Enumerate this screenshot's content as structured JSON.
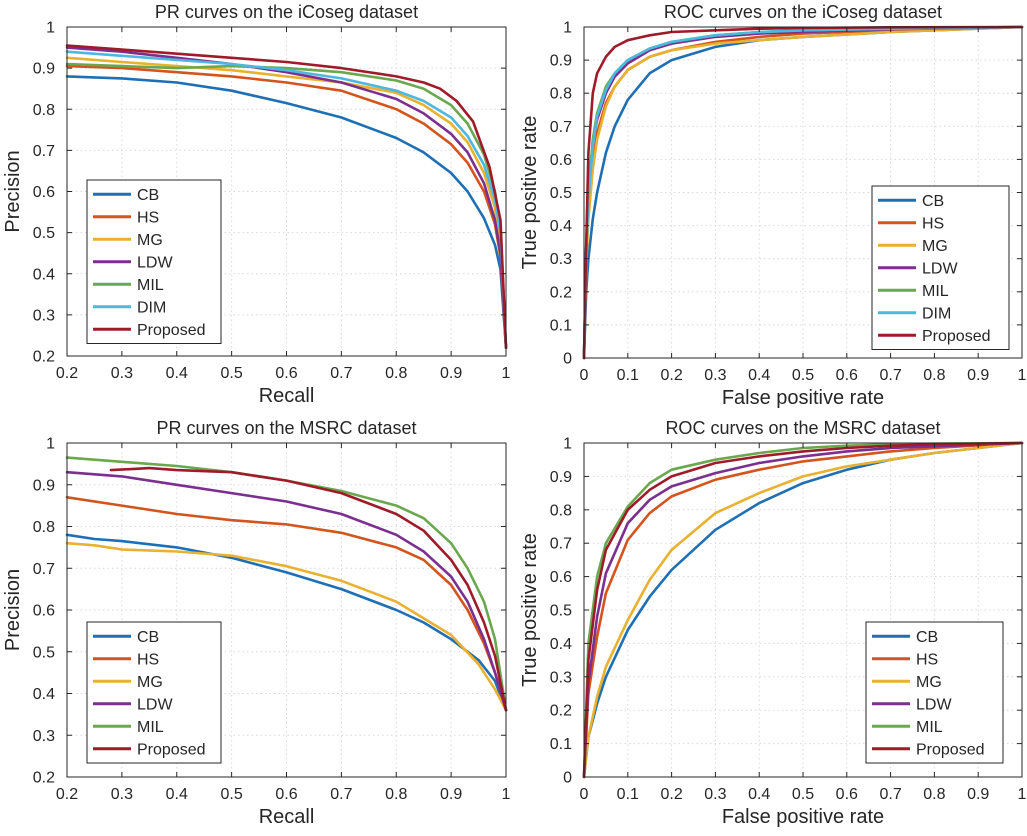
{
  "colors": {
    "CB": "#1f6fb4",
    "HS": "#d4541e",
    "MG": "#e8b12f",
    "LDW": "#7b2f8e",
    "MIL": "#6aa84f",
    "DIM": "#4db8df",
    "Proposed": "#9e1b2a"
  },
  "chart_data": [
    {
      "id": "pr-icoseg",
      "type": "line",
      "title": "PR curves on the iCoseg dataset",
      "xlabel": "Recall",
      "ylabel": "Precision",
      "xlim": [
        0.2,
        1
      ],
      "ylim": [
        0.2,
        1
      ],
      "xticks": [
        "0.2",
        "0.3",
        "0.4",
        "0.5",
        "0.6",
        "0.7",
        "0.8",
        "0.9",
        "1"
      ],
      "yticks": [
        "0.2",
        "0.3",
        "0.4",
        "0.5",
        "0.6",
        "0.7",
        "0.8",
        "0.9",
        "1"
      ],
      "grid": true,
      "legend_position": "bottom-left",
      "series": [
        {
          "name": "CB",
          "x": [
            0.2,
            0.3,
            0.4,
            0.5,
            0.6,
            0.7,
            0.8,
            0.85,
            0.9,
            0.93,
            0.96,
            0.98,
            0.99,
            1.0
          ],
          "y": [
            0.88,
            0.875,
            0.865,
            0.845,
            0.815,
            0.78,
            0.73,
            0.695,
            0.645,
            0.6,
            0.535,
            0.47,
            0.41,
            0.22
          ]
        },
        {
          "name": "HS",
          "x": [
            0.2,
            0.3,
            0.4,
            0.5,
            0.6,
            0.7,
            0.8,
            0.85,
            0.9,
            0.93,
            0.96,
            0.98,
            0.99,
            1.0
          ],
          "y": [
            0.905,
            0.9,
            0.89,
            0.88,
            0.865,
            0.845,
            0.8,
            0.765,
            0.715,
            0.67,
            0.6,
            0.52,
            0.44,
            0.22
          ]
        },
        {
          "name": "MG",
          "x": [
            0.2,
            0.3,
            0.4,
            0.5,
            0.6,
            0.7,
            0.8,
            0.85,
            0.9,
            0.93,
            0.96,
            0.98,
            0.99,
            1.0
          ],
          "y": [
            0.925,
            0.915,
            0.905,
            0.895,
            0.88,
            0.865,
            0.84,
            0.81,
            0.765,
            0.72,
            0.645,
            0.56,
            0.47,
            0.22
          ]
        },
        {
          "name": "LDW",
          "x": [
            0.2,
            0.3,
            0.4,
            0.5,
            0.6,
            0.7,
            0.8,
            0.85,
            0.9,
            0.93,
            0.96,
            0.98,
            0.99,
            1.0
          ],
          "y": [
            0.95,
            0.94,
            0.925,
            0.91,
            0.89,
            0.865,
            0.825,
            0.79,
            0.74,
            0.695,
            0.62,
            0.53,
            0.45,
            0.22
          ]
        },
        {
          "name": "MIL",
          "x": [
            0.2,
            0.3,
            0.4,
            0.5,
            0.6,
            0.7,
            0.8,
            0.85,
            0.9,
            0.93,
            0.96,
            0.98,
            0.99,
            1.0
          ],
          "y": [
            0.91,
            0.905,
            0.9,
            0.905,
            0.9,
            0.89,
            0.87,
            0.85,
            0.81,
            0.765,
            0.69,
            0.6,
            0.51,
            0.22
          ]
        },
        {
          "name": "DIM",
          "x": [
            0.2,
            0.3,
            0.4,
            0.5,
            0.6,
            0.7,
            0.8,
            0.85,
            0.9,
            0.93,
            0.96,
            0.98,
            0.99,
            1.0
          ],
          "y": [
            0.94,
            0.93,
            0.92,
            0.91,
            0.895,
            0.875,
            0.845,
            0.82,
            0.78,
            0.735,
            0.665,
            0.58,
            0.5,
            0.22
          ]
        },
        {
          "name": "Proposed",
          "x": [
            0.2,
            0.3,
            0.4,
            0.5,
            0.6,
            0.7,
            0.8,
            0.85,
            0.88,
            0.91,
            0.94,
            0.97,
            0.99,
            1.0
          ],
          "y": [
            0.955,
            0.945,
            0.935,
            0.925,
            0.915,
            0.9,
            0.88,
            0.865,
            0.85,
            0.82,
            0.77,
            0.66,
            0.53,
            0.22
          ]
        }
      ]
    },
    {
      "id": "roc-icoseg",
      "type": "line",
      "title": "ROC curves on the iCoseg dataset",
      "xlabel": "False positive rate",
      "ylabel": "True positive rate",
      "xlim": [
        0,
        1
      ],
      "ylim": [
        0,
        1
      ],
      "xticks": [
        "0",
        "0.1",
        "0.2",
        "0.3",
        "0.4",
        "0.5",
        "0.6",
        "0.7",
        "0.8",
        "0.9",
        "1"
      ],
      "yticks": [
        "0",
        "0.1",
        "0.2",
        "0.3",
        "0.4",
        "0.5",
        "0.6",
        "0.7",
        "0.8",
        "0.9",
        "1"
      ],
      "grid": true,
      "legend_position": "bottom-right",
      "series": [
        {
          "name": "CB",
          "x": [
            0,
            0.005,
            0.01,
            0.02,
            0.03,
            0.05,
            0.07,
            0.1,
            0.15,
            0.2,
            0.3,
            0.4,
            0.5,
            0.7,
            1.0
          ],
          "y": [
            0,
            0.2,
            0.3,
            0.42,
            0.5,
            0.62,
            0.7,
            0.78,
            0.86,
            0.9,
            0.94,
            0.96,
            0.97,
            0.985,
            1
          ]
        },
        {
          "name": "HS",
          "x": [
            0,
            0.005,
            0.01,
            0.02,
            0.03,
            0.05,
            0.07,
            0.1,
            0.15,
            0.2,
            0.3,
            0.4,
            0.5,
            0.7,
            1.0
          ],
          "y": [
            0,
            0.3,
            0.45,
            0.6,
            0.68,
            0.77,
            0.82,
            0.87,
            0.91,
            0.93,
            0.955,
            0.97,
            0.98,
            0.99,
            1
          ]
        },
        {
          "name": "MG",
          "x": [
            0,
            0.005,
            0.01,
            0.02,
            0.03,
            0.05,
            0.07,
            0.1,
            0.15,
            0.2,
            0.3,
            0.4,
            0.5,
            0.7,
            1.0
          ],
          "y": [
            0,
            0.28,
            0.42,
            0.57,
            0.66,
            0.76,
            0.82,
            0.87,
            0.91,
            0.93,
            0.95,
            0.96,
            0.97,
            0.985,
            1
          ]
        },
        {
          "name": "LDW",
          "x": [
            0,
            0.005,
            0.01,
            0.02,
            0.03,
            0.05,
            0.07,
            0.1,
            0.15,
            0.2,
            0.3,
            0.4,
            0.5,
            0.7,
            1.0
          ],
          "y": [
            0,
            0.33,
            0.5,
            0.65,
            0.72,
            0.8,
            0.85,
            0.89,
            0.93,
            0.95,
            0.97,
            0.98,
            0.985,
            0.993,
            1
          ]
        },
        {
          "name": "MIL",
          "x": [
            0,
            0.005,
            0.01,
            0.02,
            0.03,
            0.05,
            0.07,
            0.1,
            0.15,
            0.2,
            0.3,
            0.4,
            0.5,
            0.7,
            1.0
          ],
          "y": [
            0,
            0.33,
            0.5,
            0.66,
            0.74,
            0.82,
            0.86,
            0.9,
            0.935,
            0.955,
            0.975,
            0.985,
            0.99,
            0.995,
            1
          ]
        },
        {
          "name": "DIM",
          "x": [
            0,
            0.005,
            0.01,
            0.02,
            0.03,
            0.05,
            0.07,
            0.1,
            0.15,
            0.2,
            0.3,
            0.4,
            0.5,
            0.7,
            1.0
          ],
          "y": [
            0,
            0.32,
            0.48,
            0.64,
            0.73,
            0.81,
            0.86,
            0.9,
            0.935,
            0.955,
            0.975,
            0.985,
            0.99,
            0.995,
            1
          ]
        },
        {
          "name": "Proposed",
          "x": [
            0,
            0.005,
            0.01,
            0.02,
            0.03,
            0.05,
            0.07,
            0.1,
            0.15,
            0.2,
            0.3,
            0.4,
            0.5,
            0.7,
            1.0
          ],
          "y": [
            0,
            0.34,
            0.62,
            0.8,
            0.86,
            0.91,
            0.94,
            0.96,
            0.975,
            0.985,
            0.99,
            0.995,
            0.997,
            0.999,
            1
          ]
        }
      ]
    },
    {
      "id": "pr-msrc",
      "type": "line",
      "title": "PR curves on the MSRC dataset",
      "xlabel": "Recall",
      "ylabel": "Precision",
      "xlim": [
        0.2,
        1
      ],
      "ylim": [
        0.2,
        1
      ],
      "xticks": [
        "0.2",
        "0.3",
        "0.4",
        "0.5",
        "0.6",
        "0.7",
        "0.8",
        "0.9",
        "1"
      ],
      "yticks": [
        "0.2",
        "0.3",
        "0.4",
        "0.5",
        "0.6",
        "0.7",
        "0.8",
        "0.9",
        "1"
      ],
      "grid": true,
      "legend_position": "bottom-left",
      "series": [
        {
          "name": "CB",
          "x": [
            0.2,
            0.25,
            0.3,
            0.4,
            0.5,
            0.6,
            0.7,
            0.8,
            0.85,
            0.9,
            0.95,
            0.98,
            1.0
          ],
          "y": [
            0.78,
            0.77,
            0.765,
            0.75,
            0.725,
            0.69,
            0.65,
            0.6,
            0.57,
            0.53,
            0.48,
            0.43,
            0.36
          ]
        },
        {
          "name": "HS",
          "x": [
            0.2,
            0.3,
            0.4,
            0.5,
            0.6,
            0.7,
            0.8,
            0.85,
            0.9,
            0.93,
            0.96,
            0.98,
            1.0
          ],
          "y": [
            0.87,
            0.85,
            0.83,
            0.815,
            0.805,
            0.785,
            0.75,
            0.72,
            0.66,
            0.6,
            0.52,
            0.45,
            0.36
          ]
        },
        {
          "name": "MG",
          "x": [
            0.2,
            0.25,
            0.3,
            0.4,
            0.5,
            0.6,
            0.7,
            0.8,
            0.85,
            0.9,
            0.95,
            0.98,
            1.0
          ],
          "y": [
            0.76,
            0.755,
            0.745,
            0.74,
            0.73,
            0.705,
            0.67,
            0.62,
            0.58,
            0.54,
            0.47,
            0.41,
            0.36
          ]
        },
        {
          "name": "LDW",
          "x": [
            0.2,
            0.3,
            0.4,
            0.5,
            0.6,
            0.7,
            0.8,
            0.85,
            0.9,
            0.93,
            0.96,
            0.98,
            1.0
          ],
          "y": [
            0.93,
            0.92,
            0.9,
            0.88,
            0.86,
            0.83,
            0.78,
            0.74,
            0.68,
            0.62,
            0.53,
            0.45,
            0.36
          ]
        },
        {
          "name": "MIL",
          "x": [
            0.2,
            0.3,
            0.4,
            0.5,
            0.6,
            0.7,
            0.8,
            0.85,
            0.9,
            0.93,
            0.96,
            0.98,
            1.0
          ],
          "y": [
            0.965,
            0.955,
            0.945,
            0.93,
            0.91,
            0.885,
            0.85,
            0.82,
            0.76,
            0.7,
            0.62,
            0.53,
            0.36
          ]
        },
        {
          "name": "Proposed",
          "x": [
            0.28,
            0.35,
            0.4,
            0.5,
            0.6,
            0.7,
            0.8,
            0.85,
            0.9,
            0.93,
            0.96,
            0.98,
            1.0
          ],
          "y": [
            0.935,
            0.94,
            0.935,
            0.93,
            0.91,
            0.88,
            0.83,
            0.79,
            0.72,
            0.66,
            0.57,
            0.49,
            0.36
          ]
        }
      ]
    },
    {
      "id": "roc-msrc",
      "type": "line",
      "title": "ROC curves on the MSRC dataset",
      "xlabel": "False positive rate",
      "ylabel": "True positive rate",
      "xlim": [
        0,
        1
      ],
      "ylim": [
        0,
        1
      ],
      "xticks": [
        "0",
        "0.1",
        "0.2",
        "0.3",
        "0.4",
        "0.5",
        "0.6",
        "0.7",
        "0.8",
        "0.9",
        "1"
      ],
      "yticks": [
        "0",
        "0.1",
        "0.2",
        "0.3",
        "0.4",
        "0.5",
        "0.6",
        "0.7",
        "0.8",
        "0.9",
        "1"
      ],
      "grid": true,
      "legend_position": "bottom-right",
      "series": [
        {
          "name": "CB",
          "x": [
            0,
            0.01,
            0.03,
            0.05,
            0.1,
            0.15,
            0.2,
            0.3,
            0.4,
            0.5,
            0.6,
            0.7,
            0.8,
            0.9,
            1.0
          ],
          "y": [
            0,
            0.12,
            0.22,
            0.3,
            0.44,
            0.54,
            0.62,
            0.74,
            0.82,
            0.88,
            0.92,
            0.95,
            0.97,
            0.985,
            1
          ]
        },
        {
          "name": "HS",
          "x": [
            0,
            0.01,
            0.03,
            0.05,
            0.1,
            0.15,
            0.2,
            0.3,
            0.4,
            0.5,
            0.6,
            0.7,
            0.8,
            0.9,
            1.0
          ],
          "y": [
            0,
            0.25,
            0.42,
            0.55,
            0.71,
            0.79,
            0.84,
            0.89,
            0.92,
            0.945,
            0.96,
            0.975,
            0.985,
            0.993,
            1
          ]
        },
        {
          "name": "MG",
          "x": [
            0,
            0.01,
            0.03,
            0.05,
            0.1,
            0.15,
            0.2,
            0.3,
            0.4,
            0.5,
            0.6,
            0.7,
            0.8,
            0.9,
            1.0
          ],
          "y": [
            0,
            0.12,
            0.24,
            0.33,
            0.47,
            0.59,
            0.68,
            0.79,
            0.85,
            0.9,
            0.93,
            0.95,
            0.97,
            0.985,
            1
          ]
        },
        {
          "name": "LDW",
          "x": [
            0,
            0.01,
            0.03,
            0.05,
            0.1,
            0.15,
            0.2,
            0.3,
            0.4,
            0.5,
            0.6,
            0.7,
            0.8,
            0.9,
            1.0
          ],
          "y": [
            0,
            0.28,
            0.48,
            0.61,
            0.76,
            0.83,
            0.87,
            0.91,
            0.94,
            0.96,
            0.975,
            0.985,
            0.99,
            0.995,
            1
          ]
        },
        {
          "name": "MIL",
          "x": [
            0,
            0.01,
            0.03,
            0.05,
            0.1,
            0.15,
            0.2,
            0.3,
            0.4,
            0.5,
            0.6,
            0.7,
            0.8,
            0.9,
            1.0
          ],
          "y": [
            0,
            0.4,
            0.6,
            0.7,
            0.81,
            0.88,
            0.92,
            0.95,
            0.97,
            0.985,
            0.992,
            0.996,
            0.998,
            0.999,
            1
          ]
        },
        {
          "name": "Proposed",
          "x": [
            0,
            0.01,
            0.03,
            0.05,
            0.1,
            0.15,
            0.2,
            0.3,
            0.4,
            0.5,
            0.6,
            0.7,
            0.8,
            0.9,
            1.0
          ],
          "y": [
            0,
            0.35,
            0.56,
            0.68,
            0.8,
            0.86,
            0.9,
            0.94,
            0.96,
            0.975,
            0.985,
            0.992,
            0.996,
            0.998,
            1
          ]
        }
      ]
    }
  ]
}
